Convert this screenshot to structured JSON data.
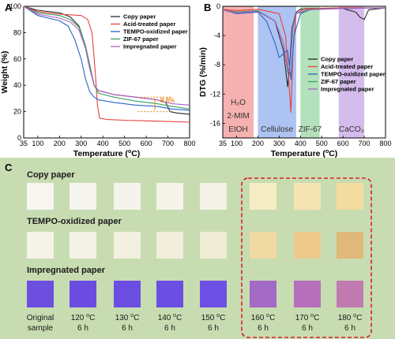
{
  "chart_data": [
    {
      "panel": "A",
      "type": "line",
      "xlabel": "Temperature (°C)",
      "ylabel": "Weight (%)",
      "xlim": [
        35,
        800
      ],
      "ylim": [
        0,
        100
      ],
      "xticks": [
        35,
        100,
        200,
        300,
        400,
        500,
        600,
        700,
        800
      ],
      "yticks": [
        0,
        20,
        40,
        60,
        80,
        100
      ],
      "legend_placement": "top-right",
      "annotation": "9.8%",
      "series": [
        {
          "name": "Copy paper",
          "color": "#2b2b2b",
          "x": [
            35,
            100,
            200,
            250,
            290,
            320,
            340,
            360,
            380,
            450,
            550,
            650,
            690,
            710,
            740,
            800
          ],
          "y": [
            100,
            97,
            95,
            92,
            85,
            70,
            55,
            40,
            36,
            33,
            31,
            29,
            27,
            20,
            19,
            18
          ]
        },
        {
          "name": "Acid-treated paper",
          "color": "#e8413c",
          "x": [
            35,
            100,
            200,
            300,
            330,
            350,
            365,
            375,
            385,
            420,
            500,
            600,
            700,
            800
          ],
          "y": [
            100,
            96,
            94,
            93,
            90,
            80,
            50,
            25,
            15,
            14,
            13.5,
            13,
            12.5,
            12
          ]
        },
        {
          "name": "TEMPO-oxidized paper",
          "color": "#2a64c8",
          "x": [
            35,
            100,
            200,
            240,
            270,
            300,
            320,
            340,
            360,
            380,
            450,
            550,
            650,
            720,
            800
          ],
          "y": [
            100,
            93,
            89,
            85,
            75,
            60,
            45,
            35,
            31,
            29,
            27,
            25,
            24,
            22,
            21
          ]
        },
        {
          "name": "ZIF-67 paper",
          "color": "#3aa060",
          "x": [
            35,
            100,
            200,
            250,
            290,
            320,
            340,
            360,
            380,
            450,
            550,
            650,
            720,
            800
          ],
          "y": [
            100,
            95,
            93,
            90,
            84,
            70,
            55,
            40,
            34,
            31,
            28,
            26,
            24,
            22
          ]
        },
        {
          "name": "Impregnated paper",
          "color": "#b060c8",
          "x": [
            35,
            100,
            200,
            250,
            290,
            320,
            340,
            360,
            380,
            450,
            550,
            650,
            720,
            800
          ],
          "y": [
            100,
            94,
            91,
            88,
            82,
            68,
            52,
            40,
            36,
            33,
            31,
            29,
            26,
            25
          ]
        }
      ]
    },
    {
      "panel": "B",
      "type": "line",
      "xlabel": "Temperature (°C)",
      "ylabel": "DTG (%/min)",
      "xlim": [
        35,
        800
      ],
      "ylim": [
        -18,
        0
      ],
      "xticks": [
        35,
        100,
        200,
        300,
        400,
        500,
        600,
        700,
        800
      ],
      "yticks": [
        0,
        -4,
        -8,
        -12,
        -16
      ],
      "legend_placement": "center-right",
      "bands": [
        {
          "x0": 35,
          "x1": 180,
          "color": "#f4a3a3",
          "label": [
            "H₂O",
            "2-MIM",
            "EtOH"
          ]
        },
        {
          "x0": 200,
          "x1": 380,
          "color": "#9fb9ee",
          "label": [
            "Cellulose"
          ]
        },
        {
          "x0": 400,
          "x1": 490,
          "color": "#a6dcb0",
          "label": [
            "ZIF-67"
          ]
        },
        {
          "x0": 580,
          "x1": 700,
          "color": "#cdb2ea",
          "label": [
            "CaCO₃"
          ]
        }
      ],
      "series": [
        {
          "name": "Copy paper",
          "color": "#2b2b2b",
          "x": [
            35,
            100,
            200,
            280,
            320,
            340,
            350,
            360,
            380,
            400,
            450,
            600,
            660,
            680,
            700,
            720,
            800
          ],
          "y": [
            -0.5,
            -0.8,
            -0.6,
            -2,
            -6,
            -11,
            -8,
            -3,
            -0.8,
            -0.4,
            -0.3,
            -0.3,
            -0.8,
            -1.5,
            -1.8,
            -0.5,
            -0.2
          ]
        },
        {
          "name": "Acid-treated paper",
          "color": "#e8413c",
          "x": [
            35,
            100,
            200,
            300,
            330,
            345,
            355,
            365,
            380,
            420,
            600,
            800
          ],
          "y": [
            -0.4,
            -0.6,
            -0.4,
            -1,
            -4,
            -10,
            -14.5,
            -6,
            -1,
            -0.3,
            -0.2,
            -0.2
          ]
        },
        {
          "name": "TEMPO-oxidized paper",
          "color": "#2a64c8",
          "x": [
            35,
            100,
            200,
            240,
            280,
            300,
            320,
            340,
            355,
            370,
            400,
            450,
            600,
            800
          ],
          "y": [
            -0.5,
            -1,
            -0.8,
            -2,
            -5,
            -7,
            -6.5,
            -6,
            -10,
            -4,
            -1,
            -0.4,
            -0.3,
            -0.2
          ]
        },
        {
          "name": "ZIF-67 paper",
          "color": "#3aa060",
          "x": [
            35,
            100,
            200,
            280,
            320,
            340,
            352,
            365,
            380,
            430,
            460,
            600,
            800
          ],
          "y": [
            -0.5,
            -0.8,
            -0.6,
            -2,
            -5,
            -9,
            -8,
            -3,
            -1,
            -0.6,
            -0.4,
            -0.3,
            -0.2
          ]
        },
        {
          "name": "Impregnated paper",
          "color": "#b060c8",
          "x": [
            35,
            100,
            200,
            280,
            320,
            340,
            350,
            362,
            380,
            430,
            600,
            800
          ],
          "y": [
            -0.5,
            -0.9,
            -0.7,
            -2,
            -5,
            -8.5,
            -9,
            -3,
            -1,
            -0.5,
            -0.3,
            -0.2
          ]
        }
      ]
    }
  ],
  "panels": {
    "a": "A",
    "b": "B",
    "c": "C"
  },
  "panel_c": {
    "background": "#c8dcb1",
    "rows": [
      {
        "title": "Copy paper",
        "colors": [
          "#f7f6f0",
          "#f6f5ee",
          "#f5f4ec",
          "#f5f3ea",
          "#f4f2e6",
          "#f6ecc4",
          "#f4e5b2",
          "#f2dca0"
        ]
      },
      {
        "title": "TEMPO-oxidized paper",
        "colors": [
          "#f4f3e8",
          "#f3f2e5",
          "#f2f0e0",
          "#f1eedb",
          "#f0ecd5",
          "#f0d9a2",
          "#ecc98a",
          "#dfb87a"
        ]
      },
      {
        "title": "Impregnated paper",
        "colors": [
          "#6d4fe0",
          "#6a4de0",
          "#6b4ee1",
          "#6b4fe2",
          "#6c50e3",
          "#a36ac6",
          "#b56fbb",
          "#c07ab0"
        ]
      }
    ],
    "captions": [
      [
        "Original",
        "sample"
      ],
      [
        "120 °C",
        "6 h"
      ],
      [
        "130 °C",
        "6 h"
      ],
      [
        "140 °C",
        "6 h"
      ],
      [
        "150 °C",
        "6 h"
      ],
      [
        "160 °C",
        "6 h"
      ],
      [
        "170 °C",
        "6 h"
      ],
      [
        "180 °C",
        "6 h"
      ]
    ]
  }
}
